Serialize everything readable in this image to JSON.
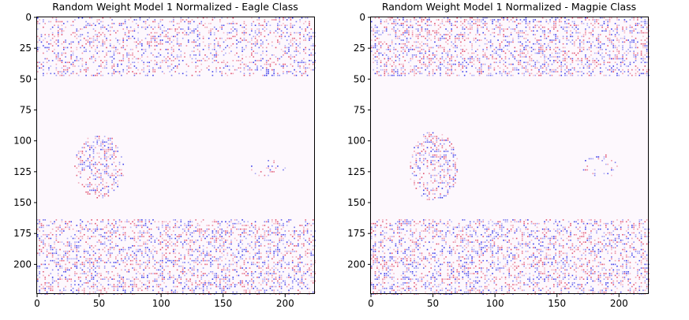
{
  "chart_data": [
    {
      "type": "heatmap",
      "title": "Random Weight Model 1 Normalized - Eagle Class",
      "xlim": [
        0,
        224
      ],
      "ylim": [
        224,
        0
      ],
      "xticks": [
        0,
        50,
        100,
        150,
        200
      ],
      "yticks": [
        0,
        25,
        50,
        75,
        100,
        125,
        150,
        175,
        200
      ],
      "colormap": "bwr",
      "regions": [
        {
          "label": "top band",
          "x": [
            0,
            224
          ],
          "y": [
            0,
            47
          ],
          "density": 0.35
        },
        {
          "label": "bottom band",
          "x": [
            0,
            224
          ],
          "y": [
            163,
            224
          ],
          "density": 0.45
        },
        {
          "label": "left blob",
          "center": [
            50,
            120
          ],
          "radius": [
            20,
            26
          ],
          "density": 0.45
        },
        {
          "label": "right blob",
          "center": [
            185,
            122
          ],
          "radius": [
            15,
            7
          ],
          "density": 0.2
        }
      ]
    },
    {
      "type": "heatmap",
      "title": "Random Weight Model 1 Normalized - Magpie Class",
      "xlim": [
        0,
        224
      ],
      "ylim": [
        224,
        0
      ],
      "xticks": [
        0,
        50,
        100,
        150,
        200
      ],
      "yticks": [
        0,
        25,
        50,
        75,
        100,
        125,
        150,
        175,
        200
      ],
      "colormap": "bwr",
      "regions": [
        {
          "label": "top band",
          "x": [
            0,
            224
          ],
          "y": [
            0,
            47
          ],
          "density": 0.45
        },
        {
          "label": "bottom band",
          "x": [
            0,
            224
          ],
          "y": [
            163,
            224
          ],
          "density": 0.45
        },
        {
          "label": "left blob",
          "center": [
            50,
            120
          ],
          "radius": [
            20,
            28
          ],
          "density": 0.45
        },
        {
          "label": "right blob",
          "center": [
            185,
            120
          ],
          "radius": [
            15,
            10
          ],
          "density": 0.2
        }
      ]
    }
  ],
  "colors": {
    "background_tint": "#fdf8fd",
    "positive": "#e0506e",
    "negative": "#3a3ae8"
  }
}
